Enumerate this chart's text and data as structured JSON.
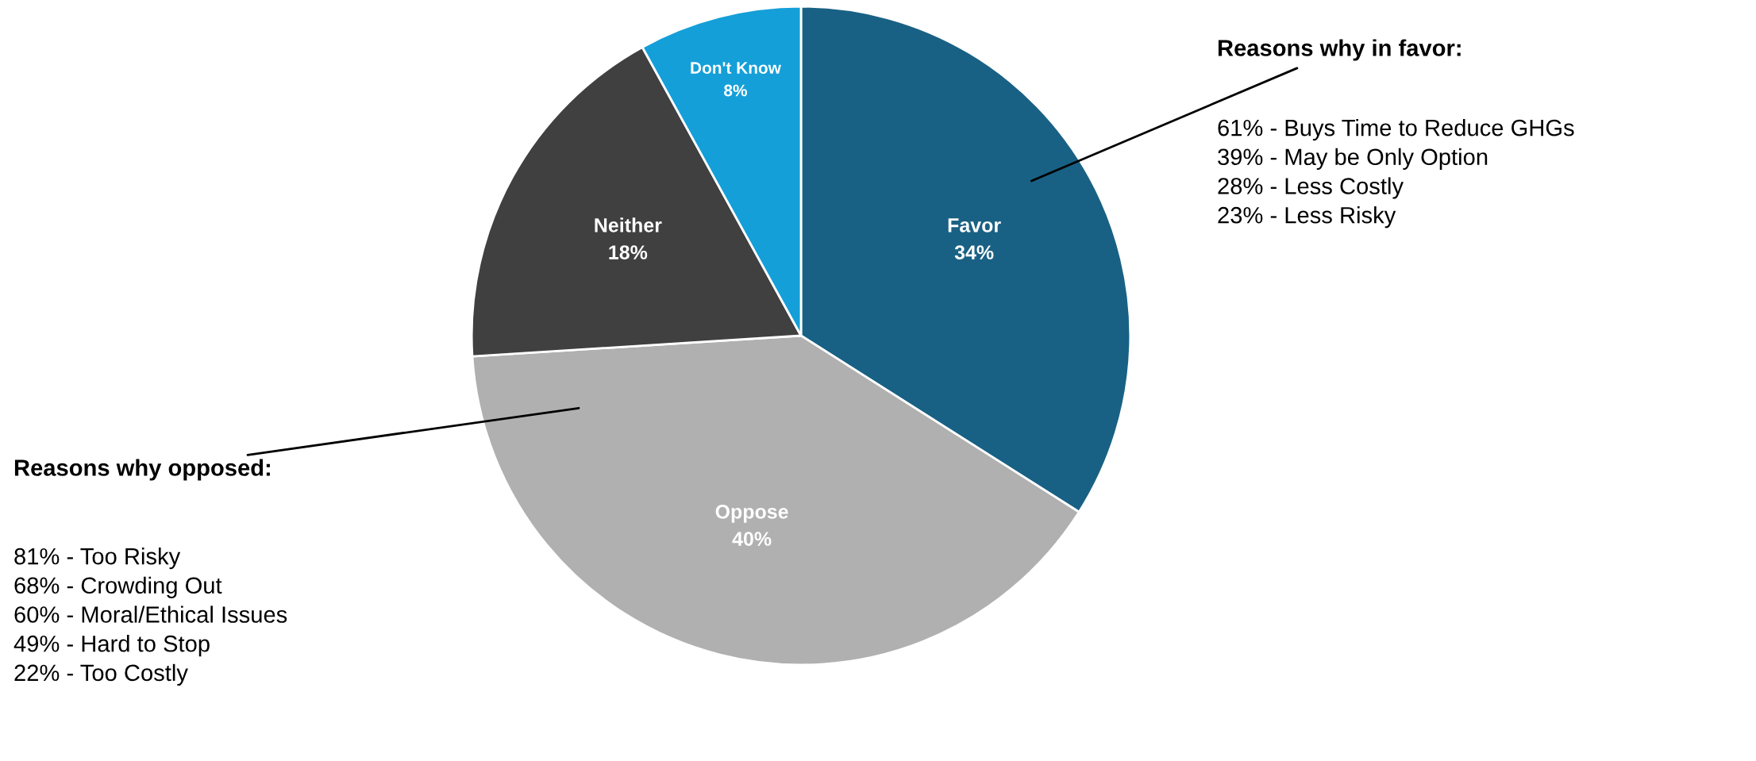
{
  "chart_data": {
    "type": "pie",
    "categories": [
      "Favor",
      "Oppose",
      "Neither",
      "Don't Know"
    ],
    "values": [
      34,
      40,
      18,
      8
    ],
    "value_labels": [
      "34%",
      "40%",
      "18%",
      "8%"
    ],
    "colors": [
      "#196184",
      "#b0b0b0",
      "#404040",
      "#159fd8"
    ],
    "legend": false,
    "annotations": [
      "Reasons why in favor:",
      "61% - Buys Time to Reduce GHGs\n39% - May be Only Option\n28% - Less Costly\n23% - Less Risky",
      "Reasons why opposed:",
      "81% - Too Risky\n68% - Crowding Out\n60% - Moral/Ethical Issues\n49% - Hard to Stop\n22% - Too Costly"
    ]
  }
}
